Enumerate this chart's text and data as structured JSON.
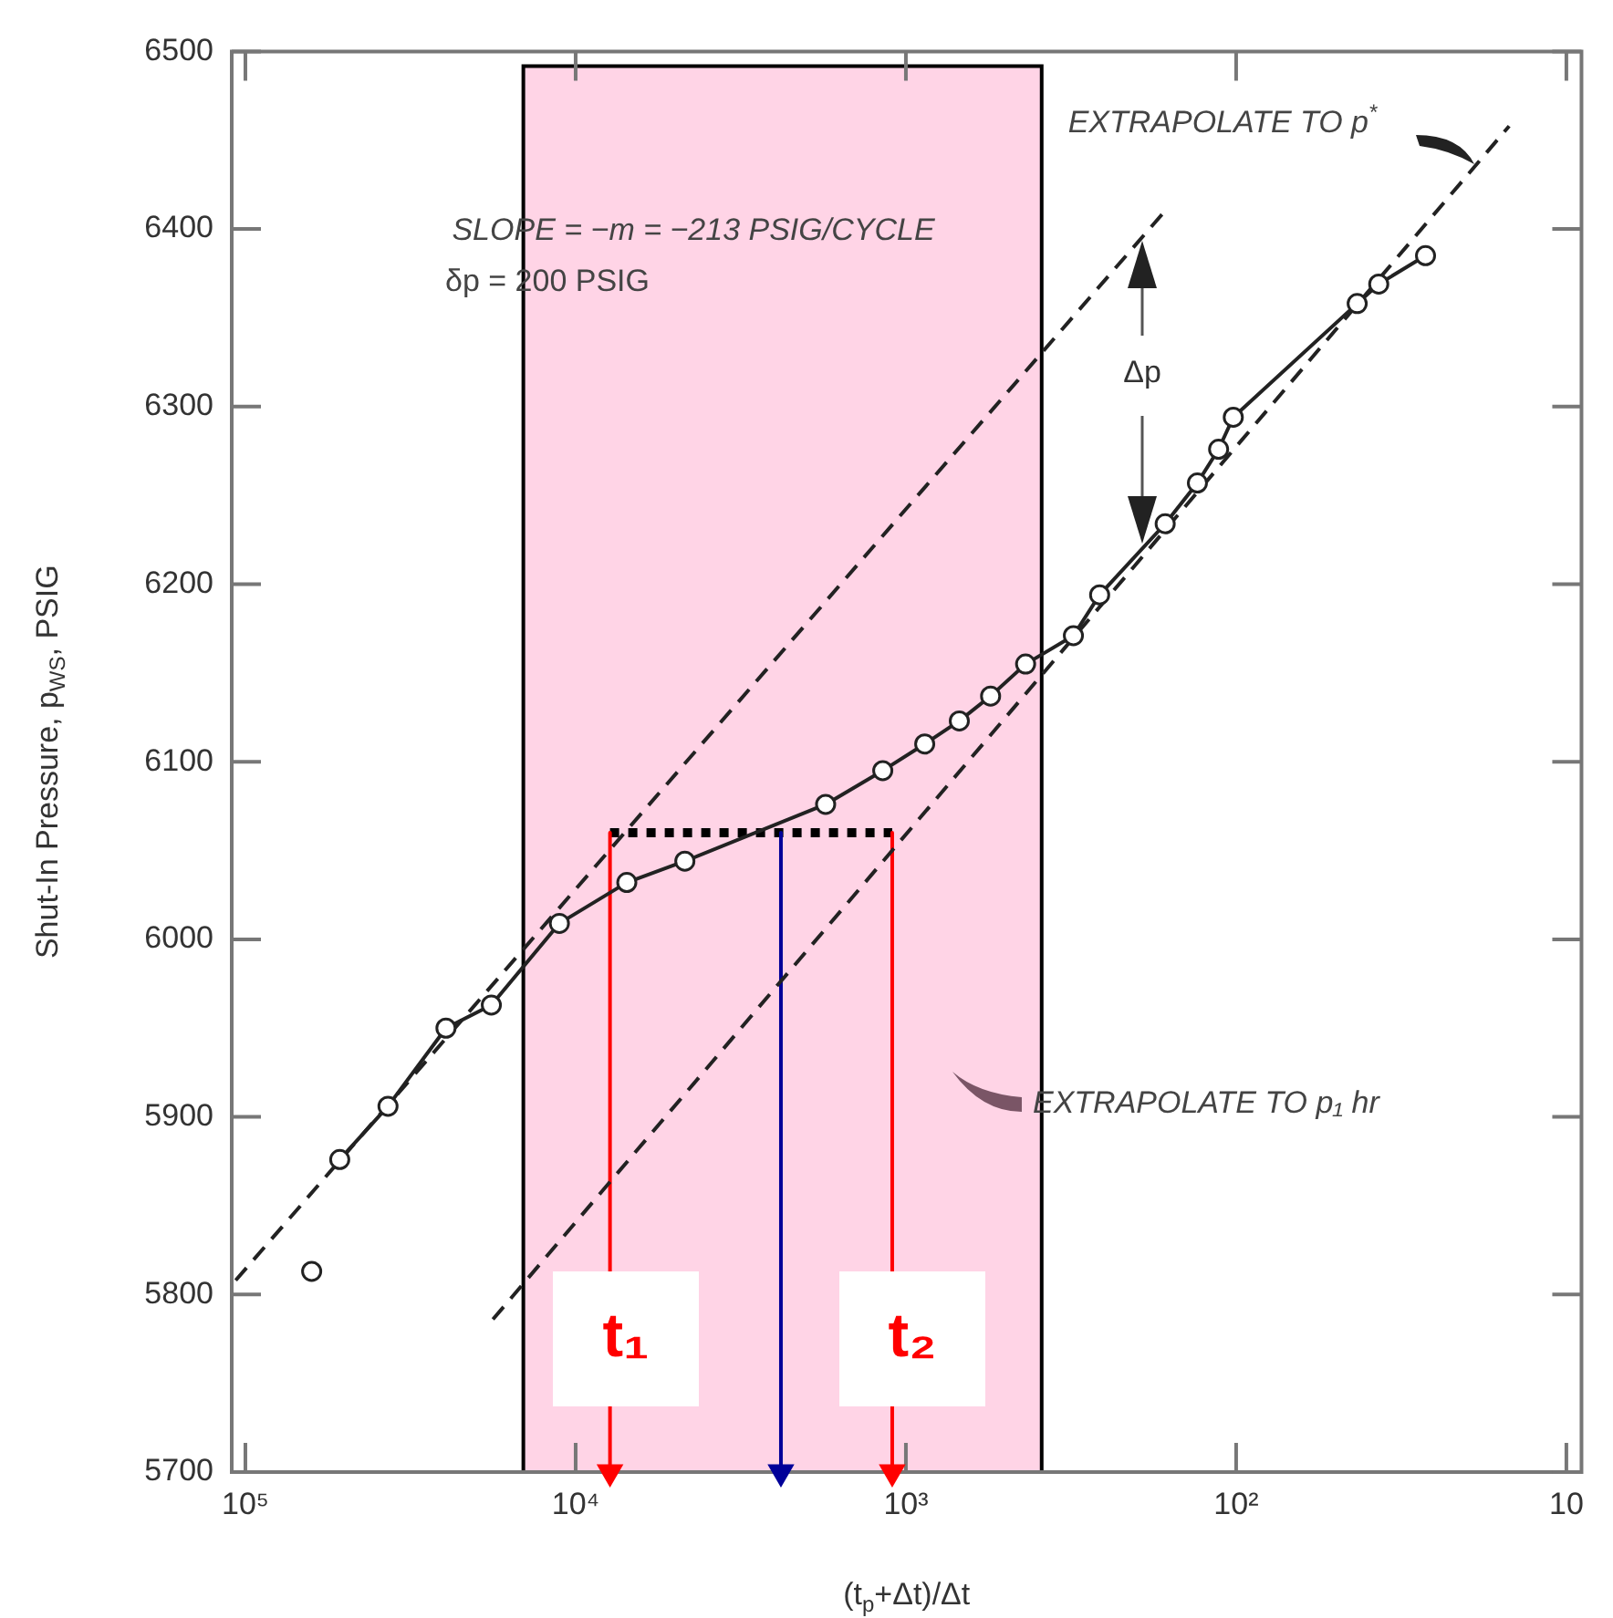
{
  "chart_data": {
    "type": "line",
    "xlabel": "(t$_{p}$+Δt)/Δt",
    "ylabel": "Shut-In Pressure, p$_{WS}$, PSIG",
    "log": "x",
    "xlim": [
      110000,
      9
    ],
    "xticks": [
      {
        "value": 100000,
        "label": "10⁵"
      },
      {
        "value": 10000,
        "label": "10⁴"
      },
      {
        "value": 1000,
        "label": "10³"
      },
      {
        "value": 100,
        "label": "10²"
      },
      10
    ],
    "ylim": [
      5700,
      6500
    ],
    "yticks": [
      5700,
      5800,
      5900,
      6000,
      6100,
      6200,
      6300,
      6400,
      6500
    ],
    "grid": false,
    "legend": false,
    "series": [
      {
        "type": "line",
        "color": "#222222",
        "marker": "circle",
        "line_style": "solid",
        "x": [
          51800,
          37000,
          24700,
          18000,
          11200,
          7000,
          4670,
          1750,
          1175,
          877,
          689,
          554,
          434,
          311,
          259,
          164,
          131,
          113,
          102,
          43,
          37,
          26.7
        ],
        "values": [
          5876,
          5906,
          5950,
          5963,
          6009,
          6032,
          6044,
          6076,
          6095,
          6110,
          6123,
          6137,
          6155,
          6171,
          6194,
          6234,
          6257,
          6276,
          6294,
          6358,
          6369,
          6385
        ]
      },
      {
        "type": "scatter",
        "color": "#222222",
        "marker": "circle",
        "x": [
          63000
        ],
        "values": [
          5813
        ]
      },
      {
        "type": "line",
        "color": "#222222",
        "marker": "none",
        "line_style": "dashed",
        "x": [
          107000,
          161
        ],
        "values": [
          5808,
          6412
        ]
      },
      {
        "type": "line",
        "color": "#222222",
        "marker": "none",
        "line_style": "dashed",
        "x": [
          17800,
          14.9
        ],
        "values": [
          5786,
          6458
        ]
      },
      {
        "type": "line",
        "color": "#ff0000",
        "marker": "triangle",
        "line_style": "solid",
        "x": [
          7870,
          7870
        ],
        "values": [
          6060,
          5700
        ]
      },
      {
        "type": "line",
        "color": "#000099",
        "marker": "triangle",
        "line_style": "solid",
        "x": [
          2390,
          2390
        ],
        "values": [
          6060,
          5700
        ]
      },
      {
        "type": "line",
        "color": "#ff0000",
        "marker": "triangle",
        "line_style": "solid",
        "x": [
          1100,
          1100
        ],
        "values": [
          6060,
          5700
        ]
      },
      {
        "type": "line",
        "color": "#000000",
        "marker": "none",
        "line_style": "dotted",
        "x": [
          7870,
          1100
        ],
        "values": [
          6060,
          6060
        ]
      }
    ],
    "bands": [
      {
        "axis": "x",
        "from": 14400,
        "to": 388,
        "color": "#ffd4e6"
      }
    ],
    "annotations": [
      "SLOPE = −m = −213 PSIG/CYCLE",
      "δp = 200 PSIG",
      "EXTRAPOLATE TO p$^{*}$",
      "Δp",
      {
        "text": "EXTRAPOLATE TO p₁ hr",
        "x": 413,
        "y": 5907
      },
      "t₁",
      "t₂"
    ]
  }
}
